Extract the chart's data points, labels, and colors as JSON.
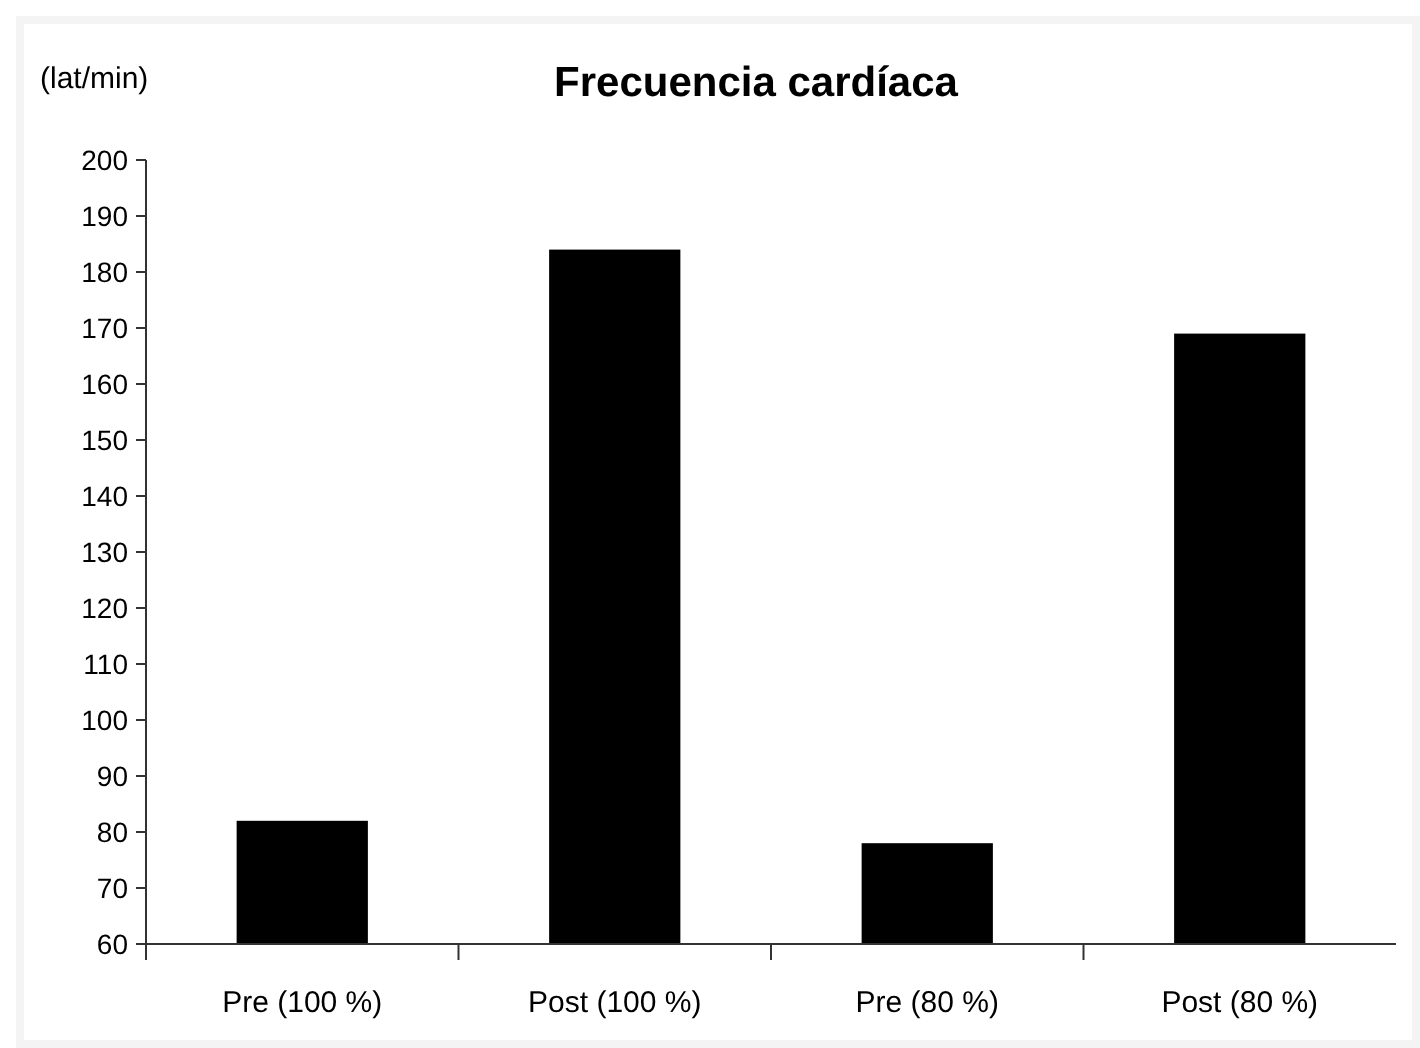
{
  "chart_data": {
    "type": "bar",
    "title": "Frecuencia cardíaca",
    "ylabel": "(lat/min)",
    "categories": [
      "Pre (100 %)",
      "Post (100 %)",
      "Pre (80 %)",
      "Post (80 %)"
    ],
    "values": [
      82,
      184,
      78,
      169
    ],
    "color": "#000000",
    "ylim": [
      60,
      200
    ],
    "yticks": [
      60,
      70,
      80,
      90,
      100,
      110,
      120,
      130,
      140,
      150,
      160,
      170,
      180,
      190,
      200
    ],
    "grid": false
  }
}
